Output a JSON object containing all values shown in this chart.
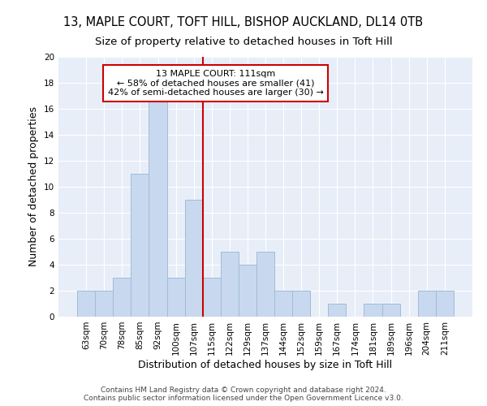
{
  "title_line1": "13, MAPLE COURT, TOFT HILL, BISHOP AUCKLAND, DL14 0TB",
  "title_line2": "Size of property relative to detached houses in Toft Hill",
  "xlabel": "Distribution of detached houses by size in Toft Hill",
  "ylabel": "Number of detached properties",
  "categories": [
    "63sqm",
    "70sqm",
    "78sqm",
    "85sqm",
    "92sqm",
    "100sqm",
    "107sqm",
    "115sqm",
    "122sqm",
    "129sqm",
    "137sqm",
    "144sqm",
    "152sqm",
    "159sqm",
    "167sqm",
    "174sqm",
    "181sqm",
    "189sqm",
    "196sqm",
    "204sqm",
    "211sqm"
  ],
  "values": [
    2,
    2,
    3,
    11,
    17,
    3,
    9,
    3,
    5,
    4,
    5,
    2,
    2,
    0,
    1,
    0,
    1,
    1,
    0,
    2,
    2
  ],
  "bar_color": "#c8d8ee",
  "bar_edge_color": "#a0bcd8",
  "ylim": [
    0,
    20
  ],
  "yticks": [
    0,
    2,
    4,
    6,
    8,
    10,
    12,
    14,
    16,
    18,
    20
  ],
  "annotation_title": "13 MAPLE COURT: 111sqm",
  "annotation_line2": "← 58% of detached houses are smaller (41)",
  "annotation_line3": "42% of semi-detached houses are larger (30) →",
  "annotation_box_color": "#ffffff",
  "annotation_box_edge": "#cc0000",
  "vline_color": "#cc0000",
  "vline_x": 7,
  "background_color": "#ffffff",
  "plot_bg_color": "#e8eef8",
  "grid_color": "#ffffff",
  "footer_line1": "Contains HM Land Registry data © Crown copyright and database right 2024.",
  "footer_line2": "Contains public sector information licensed under the Open Government Licence v3.0.",
  "title_fontsize": 10.5,
  "subtitle_fontsize": 9.5,
  "axis_label_fontsize": 9,
  "tick_fontsize": 7.5,
  "annotation_fontsize": 8,
  "footer_fontsize": 6.5
}
